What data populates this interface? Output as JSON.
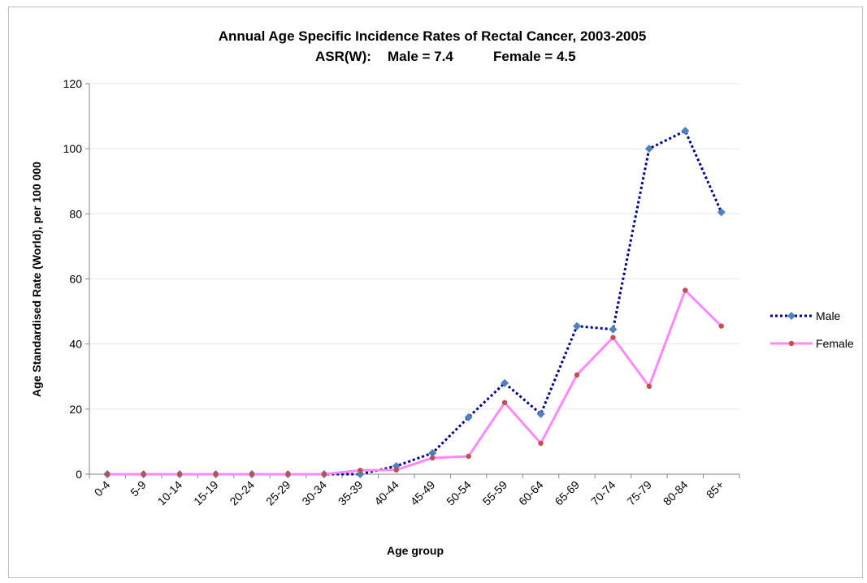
{
  "chart_data": {
    "type": "line",
    "title": "Annual Age Specific Incidence Rates of Rectal Cancer, 2003-2005",
    "subtitle": {
      "prefix": "ASR(W):",
      "male": "Male = 7.4",
      "female": "Female = 4.5"
    },
    "xlabel": "Age group",
    "ylabel": "Age Standardised Rate (World), per 100 000",
    "ylim": [
      0,
      120
    ],
    "yticks": [
      "0",
      "20",
      "40",
      "60",
      "80",
      "100",
      "120"
    ],
    "grid": true,
    "legend_position": "right",
    "categories": [
      "0-4",
      "5-9",
      "10-14",
      "15-19",
      "20-24",
      "25-29",
      "30-34",
      "35-39",
      "40-44",
      "45-49",
      "50-54",
      "55-59",
      "60-64",
      "65-69",
      "70-74",
      "75-79",
      "80-84",
      "85+"
    ],
    "series": [
      {
        "name": "Male",
        "line_color": "#00008b",
        "marker_color": "#4f81bd",
        "line_style": "dotted",
        "marker": "diamond",
        "values": [
          0,
          0,
          0,
          0,
          0,
          0,
          0,
          0,
          2.5,
          6.5,
          17.5,
          28,
          18.5,
          45.5,
          44.5,
          100,
          105.5,
          80.5
        ]
      },
      {
        "name": "Female",
        "line_color": "#ff88ff",
        "marker_color": "#c0504d",
        "line_style": "solid",
        "marker": "circle",
        "values": [
          0,
          0,
          0,
          0,
          0,
          0,
          0,
          1.2,
          1.3,
          5,
          5.5,
          22,
          9.5,
          30.5,
          42,
          27,
          56.5,
          45.5
        ]
      }
    ]
  }
}
